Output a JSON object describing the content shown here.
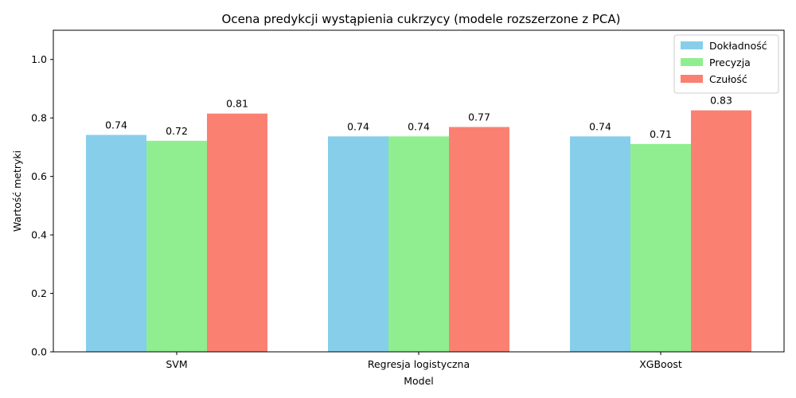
{
  "chart_data": {
    "type": "bar",
    "title": "Ocena predykcji wystąpienia cukrzycy (modele rozszerzone z PCA)",
    "xlabel": "Model",
    "ylabel": "Wartość metryki",
    "categories": [
      "SVM",
      "Regresja logistyczna",
      "XGBoost"
    ],
    "series": [
      {
        "name": "Dokładność",
        "color": "#87ceeb",
        "values": [
          0.742,
          0.737,
          0.737
        ],
        "labels": [
          "0.74",
          "0.74",
          "0.74"
        ]
      },
      {
        "name": "Precyzja",
        "color": "#90ee90",
        "values": [
          0.722,
          0.737,
          0.711
        ],
        "labels": [
          "0.72",
          "0.74",
          "0.71"
        ]
      },
      {
        "name": "Czułość",
        "color": "#fa8072",
        "values": [
          0.815,
          0.769,
          0.826
        ],
        "labels": [
          "0.81",
          "0.77",
          "0.83"
        ]
      }
    ],
    "ylim": [
      0,
      1.1
    ],
    "yticks": [
      "0.0",
      "0.2",
      "0.4",
      "0.6",
      "0.8",
      "1.0"
    ],
    "grid": false,
    "legend_position": "top-right"
  }
}
